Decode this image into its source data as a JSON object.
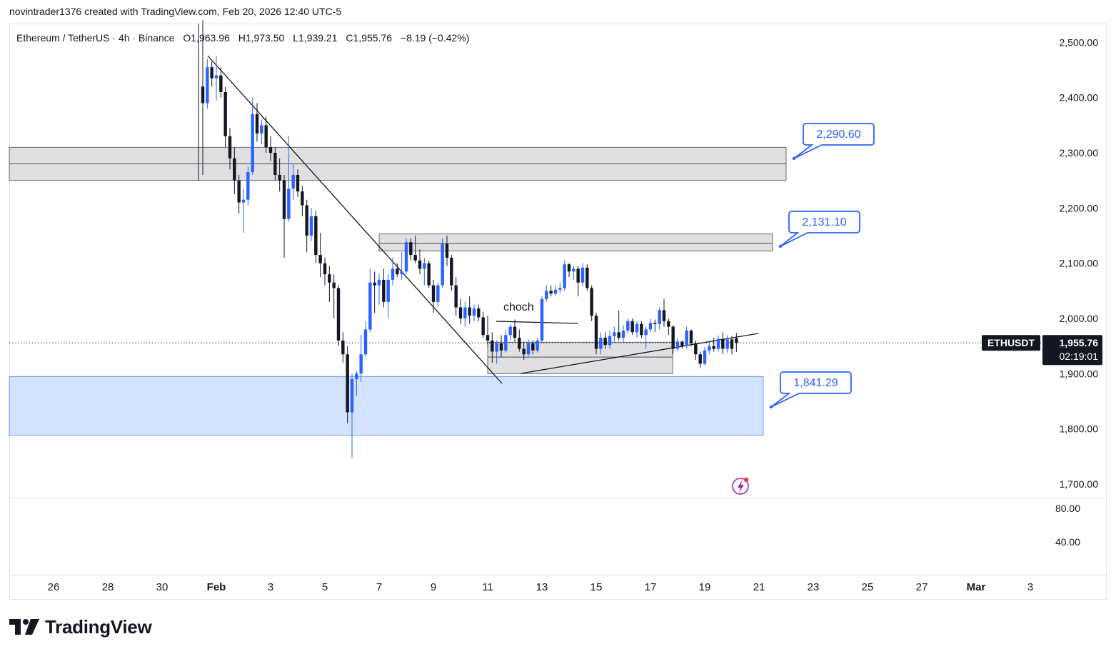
{
  "header": {
    "attribution": "novintrader1376 created with TradingView.com, Feb 20, 2026 12:40 UTC-5"
  },
  "legend": {
    "symbol": "Ethereum / TetherUS · 4h · Binance",
    "open": "O1,963.96",
    "high": "H1,973.50",
    "low": "L1,939.21",
    "close": "C1,955.76",
    "change": "−8.19 (−0.42%)"
  },
  "footer": {
    "logo_text": "TradingView"
  },
  "price_axis": {
    "ticks": [
      "2,500.00",
      "2,400.00",
      "2,300.00",
      "2,200.00",
      "2,100.00",
      "2,000.00",
      "1,900.00",
      "1,800.00",
      "1,700.00"
    ],
    "tick_values": [
      2500,
      2400,
      2300,
      2200,
      2100,
      2000,
      1900,
      1800,
      1700
    ],
    "indicator_ticks": [
      "80.00",
      "40.00"
    ],
    "symbol_badge": "ETHUSDT",
    "last_price": "1,955.76",
    "countdown": "02:19:01"
  },
  "time_axis": {
    "labels": [
      "26",
      "28",
      "30",
      "Feb",
      "3",
      "5",
      "7",
      "9",
      "11",
      "13",
      "15",
      "17",
      "19",
      "21",
      "23",
      "25",
      "27",
      "Mar",
      "3"
    ]
  },
  "annotations": {
    "callout_top": "2,290.60",
    "callout_mid": "2,131.10",
    "callout_bottom": "1,841.29",
    "choch": "choch"
  },
  "colors": {
    "bull": "#2962ff",
    "bear": "#131722",
    "zone_gray": "#d6d6d8",
    "zone_blue": "#d1e0ff",
    "callout_border": "#2962ff"
  },
  "chart_data": {
    "type": "candlestick",
    "title": "Ethereum / TetherUS · 4h · Binance",
    "last_close": 1955.76,
    "ylim": [
      1680,
      2540
    ],
    "x_unit": "date (2026)",
    "zones": [
      {
        "name": "resistance-upper",
        "y_low": 2250,
        "y_high": 2310,
        "mid_line": 2280
      },
      {
        "name": "resistance-mid",
        "y_low": 2122,
        "y_high": 2153,
        "mid_line": 2136
      },
      {
        "name": "range-box",
        "y_low": 1900,
        "y_high": 1957,
        "mid_line": 1930
      },
      {
        "name": "demand",
        "y_low": 1788,
        "y_high": 1895
      }
    ],
    "callout_levels": [
      2290.6,
      2131.1,
      1841.29
    ],
    "candles": [
      {
        "t": "2026-01-31 12:00",
        "o": 2420,
        "h": 2540,
        "l": 2260,
        "c": 2390
      },
      {
        "t": "2026-01-31 16:00",
        "o": 2390,
        "h": 2470,
        "l": 2380,
        "c": 2455
      },
      {
        "t": "2026-01-31 20:00",
        "o": 2455,
        "h": 2465,
        "l": 2420,
        "c": 2435
      },
      {
        "t": "2026-02-01 00:00",
        "o": 2435,
        "h": 2475,
        "l": 2395,
        "c": 2440
      },
      {
        "t": "2026-02-01 04:00",
        "o": 2440,
        "h": 2455,
        "l": 2400,
        "c": 2410
      },
      {
        "t": "2026-02-01 08:00",
        "o": 2410,
        "h": 2420,
        "l": 2310,
        "c": 2330
      },
      {
        "t": "2026-02-01 12:00",
        "o": 2330,
        "h": 2345,
        "l": 2270,
        "c": 2290
      },
      {
        "t": "2026-02-01 16:00",
        "o": 2290,
        "h": 2310,
        "l": 2225,
        "c": 2250
      },
      {
        "t": "2026-02-01 20:00",
        "o": 2250,
        "h": 2260,
        "l": 2190,
        "c": 2210
      },
      {
        "t": "2026-02-02 00:00",
        "o": 2210,
        "h": 2235,
        "l": 2155,
        "c": 2215
      },
      {
        "t": "2026-02-02 04:00",
        "o": 2215,
        "h": 2275,
        "l": 2205,
        "c": 2265
      },
      {
        "t": "2026-02-02 08:00",
        "o": 2265,
        "h": 2400,
        "l": 2260,
        "c": 2370
      },
      {
        "t": "2026-02-02 12:00",
        "o": 2370,
        "h": 2390,
        "l": 2320,
        "c": 2335
      },
      {
        "t": "2026-02-02 16:00",
        "o": 2335,
        "h": 2360,
        "l": 2315,
        "c": 2350
      },
      {
        "t": "2026-02-02 20:00",
        "o": 2350,
        "h": 2365,
        "l": 2300,
        "c": 2310
      },
      {
        "t": "2026-02-03 00:00",
        "o": 2310,
        "h": 2330,
        "l": 2285,
        "c": 2300
      },
      {
        "t": "2026-02-03 04:00",
        "o": 2300,
        "h": 2310,
        "l": 2250,
        "c": 2260
      },
      {
        "t": "2026-02-03 08:00",
        "o": 2260,
        "h": 2290,
        "l": 2230,
        "c": 2250
      },
      {
        "t": "2026-02-03 12:00",
        "o": 2250,
        "h": 2260,
        "l": 2110,
        "c": 2180
      },
      {
        "t": "2026-02-03 16:00",
        "o": 2180,
        "h": 2330,
        "l": 2175,
        "c": 2235
      },
      {
        "t": "2026-02-03 20:00",
        "o": 2235,
        "h": 2280,
        "l": 2215,
        "c": 2260
      },
      {
        "t": "2026-02-04 00:00",
        "o": 2260,
        "h": 2270,
        "l": 2220,
        "c": 2230
      },
      {
        "t": "2026-02-04 04:00",
        "o": 2230,
        "h": 2240,
        "l": 2185,
        "c": 2205
      },
      {
        "t": "2026-02-04 08:00",
        "o": 2205,
        "h": 2215,
        "l": 2120,
        "c": 2150
      },
      {
        "t": "2026-02-04 12:00",
        "o": 2150,
        "h": 2200,
        "l": 2140,
        "c": 2185
      },
      {
        "t": "2026-02-04 16:00",
        "o": 2185,
        "h": 2195,
        "l": 2100,
        "c": 2115
      },
      {
        "t": "2026-02-04 20:00",
        "o": 2115,
        "h": 2155,
        "l": 2075,
        "c": 2100
      },
      {
        "t": "2026-02-05 00:00",
        "o": 2100,
        "h": 2110,
        "l": 2060,
        "c": 2080
      },
      {
        "t": "2026-02-05 04:00",
        "o": 2080,
        "h": 2095,
        "l": 2030,
        "c": 2065
      },
      {
        "t": "2026-02-05 08:00",
        "o": 2065,
        "h": 2080,
        "l": 2000,
        "c": 2055
      },
      {
        "t": "2026-02-05 12:00",
        "o": 2055,
        "h": 2060,
        "l": 1950,
        "c": 1960
      },
      {
        "t": "2026-02-05 16:00",
        "o": 1960,
        "h": 1975,
        "l": 1920,
        "c": 1935
      },
      {
        "t": "2026-02-05 20:00",
        "o": 1935,
        "h": 1950,
        "l": 1810,
        "c": 1830
      },
      {
        "t": "2026-02-06 00:00",
        "o": 1830,
        "h": 1900,
        "l": 1747,
        "c": 1890
      },
      {
        "t": "2026-02-06 04:00",
        "o": 1890,
        "h": 1905,
        "l": 1860,
        "c": 1900
      },
      {
        "t": "2026-02-06 08:00",
        "o": 1900,
        "h": 1970,
        "l": 1885,
        "c": 1935
      },
      {
        "t": "2026-02-06 12:00",
        "o": 1935,
        "h": 1995,
        "l": 1930,
        "c": 1980
      },
      {
        "t": "2026-02-06 16:00",
        "o": 1980,
        "h": 2090,
        "l": 1975,
        "c": 2065
      },
      {
        "t": "2026-02-06 20:00",
        "o": 2065,
        "h": 2085,
        "l": 2010,
        "c": 2060
      },
      {
        "t": "2026-02-07 00:00",
        "o": 2060,
        "h": 2080,
        "l": 2025,
        "c": 2070
      },
      {
        "t": "2026-02-07 04:00",
        "o": 2070,
        "h": 2090,
        "l": 2020,
        "c": 2030
      },
      {
        "t": "2026-02-07 08:00",
        "o": 2030,
        "h": 2080,
        "l": 2000,
        "c": 2070
      },
      {
        "t": "2026-02-07 12:00",
        "o": 2070,
        "h": 2110,
        "l": 2060,
        "c": 2090
      },
      {
        "t": "2026-02-07 16:00",
        "o": 2090,
        "h": 2100,
        "l": 2075,
        "c": 2080
      },
      {
        "t": "2026-02-07 20:00",
        "o": 2080,
        "h": 2120,
        "l": 2070,
        "c": 2085
      },
      {
        "t": "2026-02-08 00:00",
        "o": 2085,
        "h": 2145,
        "l": 2080,
        "c": 2138
      },
      {
        "t": "2026-02-08 04:00",
        "o": 2138,
        "h": 2145,
        "l": 2105,
        "c": 2115
      },
      {
        "t": "2026-02-08 08:00",
        "o": 2115,
        "h": 2150,
        "l": 2100,
        "c": 2105
      },
      {
        "t": "2026-02-08 12:00",
        "o": 2105,
        "h": 2125,
        "l": 2080,
        "c": 2090
      },
      {
        "t": "2026-02-08 16:00",
        "o": 2090,
        "h": 2110,
        "l": 2060,
        "c": 2100
      },
      {
        "t": "2026-02-08 20:00",
        "o": 2100,
        "h": 2105,
        "l": 2055,
        "c": 2060
      },
      {
        "t": "2026-02-09 00:00",
        "o": 2060,
        "h": 2070,
        "l": 2010,
        "c": 2030
      },
      {
        "t": "2026-02-09 04:00",
        "o": 2030,
        "h": 2065,
        "l": 2020,
        "c": 2060
      },
      {
        "t": "2026-02-09 08:00",
        "o": 2060,
        "h": 2145,
        "l": 2055,
        "c": 2135
      },
      {
        "t": "2026-02-09 12:00",
        "o": 2135,
        "h": 2150,
        "l": 2095,
        "c": 2110
      },
      {
        "t": "2026-02-09 16:00",
        "o": 2110,
        "h": 2115,
        "l": 2050,
        "c": 2060
      },
      {
        "t": "2026-02-09 20:00",
        "o": 2060,
        "h": 2075,
        "l": 2005,
        "c": 2020
      },
      {
        "t": "2026-02-10 00:00",
        "o": 2020,
        "h": 2035,
        "l": 1990,
        "c": 2000
      },
      {
        "t": "2026-02-10 04:00",
        "o": 2000,
        "h": 2030,
        "l": 1985,
        "c": 2020
      },
      {
        "t": "2026-02-10 08:00",
        "o": 2020,
        "h": 2040,
        "l": 1990,
        "c": 2005
      },
      {
        "t": "2026-02-10 12:00",
        "o": 2005,
        "h": 2025,
        "l": 1995,
        "c": 2018
      },
      {
        "t": "2026-02-10 16:00",
        "o": 2018,
        "h": 2025,
        "l": 1995,
        "c": 2002
      },
      {
        "t": "2026-02-10 20:00",
        "o": 2002,
        "h": 2012,
        "l": 1965,
        "c": 1970
      },
      {
        "t": "2026-02-11 00:00",
        "o": 1970,
        "h": 2005,
        "l": 1950,
        "c": 1960
      },
      {
        "t": "2026-02-11 04:00",
        "o": 1960,
        "h": 1975,
        "l": 1920,
        "c": 1940
      },
      {
        "t": "2026-02-11 08:00",
        "o": 1940,
        "h": 1960,
        "l": 1918,
        "c": 1955
      },
      {
        "t": "2026-02-11 12:00",
        "o": 1955,
        "h": 1970,
        "l": 1930,
        "c": 1942
      },
      {
        "t": "2026-02-11 16:00",
        "o": 1942,
        "h": 1980,
        "l": 1938,
        "c": 1970
      },
      {
        "t": "2026-02-11 20:00",
        "o": 1970,
        "h": 1990,
        "l": 1960,
        "c": 1985
      },
      {
        "t": "2026-02-12 00:00",
        "o": 1985,
        "h": 1998,
        "l": 1958,
        "c": 1965
      },
      {
        "t": "2026-02-12 04:00",
        "o": 1965,
        "h": 1980,
        "l": 1940,
        "c": 1945
      },
      {
        "t": "2026-02-12 08:00",
        "o": 1945,
        "h": 1958,
        "l": 1925,
        "c": 1935
      },
      {
        "t": "2026-02-12 12:00",
        "o": 1935,
        "h": 1962,
        "l": 1930,
        "c": 1955
      },
      {
        "t": "2026-02-12 16:00",
        "o": 1955,
        "h": 1960,
        "l": 1935,
        "c": 1942
      },
      {
        "t": "2026-02-12 20:00",
        "o": 1942,
        "h": 1965,
        "l": 1938,
        "c": 1960
      },
      {
        "t": "2026-02-13 00:00",
        "o": 1960,
        "h": 2040,
        "l": 1955,
        "c": 2035
      },
      {
        "t": "2026-02-13 04:00",
        "o": 2035,
        "h": 2060,
        "l": 2030,
        "c": 2050
      },
      {
        "t": "2026-02-13 08:00",
        "o": 2050,
        "h": 2060,
        "l": 2040,
        "c": 2045
      },
      {
        "t": "2026-02-13 12:00",
        "o": 2045,
        "h": 2060,
        "l": 2040,
        "c": 2052
      },
      {
        "t": "2026-02-13 16:00",
        "o": 2052,
        "h": 2065,
        "l": 2045,
        "c": 2055
      },
      {
        "t": "2026-02-13 20:00",
        "o": 2055,
        "h": 2105,
        "l": 2050,
        "c": 2098
      },
      {
        "t": "2026-02-14 00:00",
        "o": 2098,
        "h": 2100,
        "l": 2075,
        "c": 2085
      },
      {
        "t": "2026-02-14 04:00",
        "o": 2085,
        "h": 2095,
        "l": 2070,
        "c": 2090
      },
      {
        "t": "2026-02-14 08:00",
        "o": 2090,
        "h": 2095,
        "l": 2040,
        "c": 2065
      },
      {
        "t": "2026-02-14 12:00",
        "o": 2065,
        "h": 2100,
        "l": 2058,
        "c": 2092
      },
      {
        "t": "2026-02-14 16:00",
        "o": 2092,
        "h": 2098,
        "l": 2050,
        "c": 2055
      },
      {
        "t": "2026-02-14 20:00",
        "o": 2055,
        "h": 2060,
        "l": 1995,
        "c": 2005
      },
      {
        "t": "2026-02-15 00:00",
        "o": 2005,
        "h": 2010,
        "l": 1935,
        "c": 1945
      },
      {
        "t": "2026-02-15 04:00",
        "o": 1945,
        "h": 1975,
        "l": 1935,
        "c": 1965
      },
      {
        "t": "2026-02-15 08:00",
        "o": 1965,
        "h": 1975,
        "l": 1945,
        "c": 1952
      },
      {
        "t": "2026-02-15 12:00",
        "o": 1952,
        "h": 1978,
        "l": 1945,
        "c": 1968
      },
      {
        "t": "2026-02-15 16:00",
        "o": 1968,
        "h": 1985,
        "l": 1958,
        "c": 1975
      },
      {
        "t": "2026-02-15 20:00",
        "o": 1975,
        "h": 2015,
        "l": 1960,
        "c": 1965
      },
      {
        "t": "2026-02-16 00:00",
        "o": 1965,
        "h": 1988,
        "l": 1958,
        "c": 1978
      },
      {
        "t": "2026-02-16 04:00",
        "o": 1978,
        "h": 2000,
        "l": 1972,
        "c": 1995
      },
      {
        "t": "2026-02-16 08:00",
        "o": 1995,
        "h": 2000,
        "l": 1970,
        "c": 1975
      },
      {
        "t": "2026-02-16 12:00",
        "o": 1975,
        "h": 1995,
        "l": 1965,
        "c": 1990
      },
      {
        "t": "2026-02-16 16:00",
        "o": 1990,
        "h": 1995,
        "l": 1965,
        "c": 1970
      },
      {
        "t": "2026-02-16 20:00",
        "o": 1970,
        "h": 1985,
        "l": 1945,
        "c": 1980
      },
      {
        "t": "2026-02-17 00:00",
        "o": 1980,
        "h": 2000,
        "l": 1975,
        "c": 1992
      },
      {
        "t": "2026-02-17 04:00",
        "o": 1992,
        "h": 1998,
        "l": 1975,
        "c": 1990
      },
      {
        "t": "2026-02-17 08:00",
        "o": 1990,
        "h": 2020,
        "l": 1980,
        "c": 2015
      },
      {
        "t": "2026-02-17 12:00",
        "o": 2015,
        "h": 2035,
        "l": 1985,
        "c": 1995
      },
      {
        "t": "2026-02-17 16:00",
        "o": 1995,
        "h": 2000,
        "l": 1970,
        "c": 1985
      },
      {
        "t": "2026-02-17 20:00",
        "o": 1985,
        "h": 1988,
        "l": 1935,
        "c": 1945
      },
      {
        "t": "2026-02-18 00:00",
        "o": 1945,
        "h": 1965,
        "l": 1940,
        "c": 1958
      },
      {
        "t": "2026-02-18 04:00",
        "o": 1958,
        "h": 1960,
        "l": 1945,
        "c": 1950
      },
      {
        "t": "2026-02-18 08:00",
        "o": 1950,
        "h": 1985,
        "l": 1945,
        "c": 1978
      },
      {
        "t": "2026-02-18 12:00",
        "o": 1978,
        "h": 1980,
        "l": 1950,
        "c": 1955
      },
      {
        "t": "2026-02-18 16:00",
        "o": 1955,
        "h": 1960,
        "l": 1925,
        "c": 1935
      },
      {
        "t": "2026-02-18 20:00",
        "o": 1935,
        "h": 1940,
        "l": 1910,
        "c": 1918
      },
      {
        "t": "2026-02-19 00:00",
        "o": 1918,
        "h": 1948,
        "l": 1915,
        "c": 1942
      },
      {
        "t": "2026-02-19 04:00",
        "o": 1942,
        "h": 1955,
        "l": 1935,
        "c": 1950
      },
      {
        "t": "2026-02-19 08:00",
        "o": 1950,
        "h": 1965,
        "l": 1940,
        "c": 1945
      },
      {
        "t": "2026-02-19 12:00",
        "o": 1945,
        "h": 1970,
        "l": 1940,
        "c": 1963
      },
      {
        "t": "2026-02-19 16:00",
        "o": 1963,
        "h": 1975,
        "l": 1935,
        "c": 1945
      },
      {
        "t": "2026-02-19 20:00",
        "o": 1945,
        "h": 1970,
        "l": 1938,
        "c": 1962
      },
      {
        "t": "2026-02-20 00:00",
        "o": 1962,
        "h": 1968,
        "l": 1935,
        "c": 1945
      },
      {
        "t": "2026-02-20 04:00",
        "o": 1963.96,
        "h": 1973.5,
        "l": 1939.21,
        "c": 1955.76
      }
    ]
  }
}
